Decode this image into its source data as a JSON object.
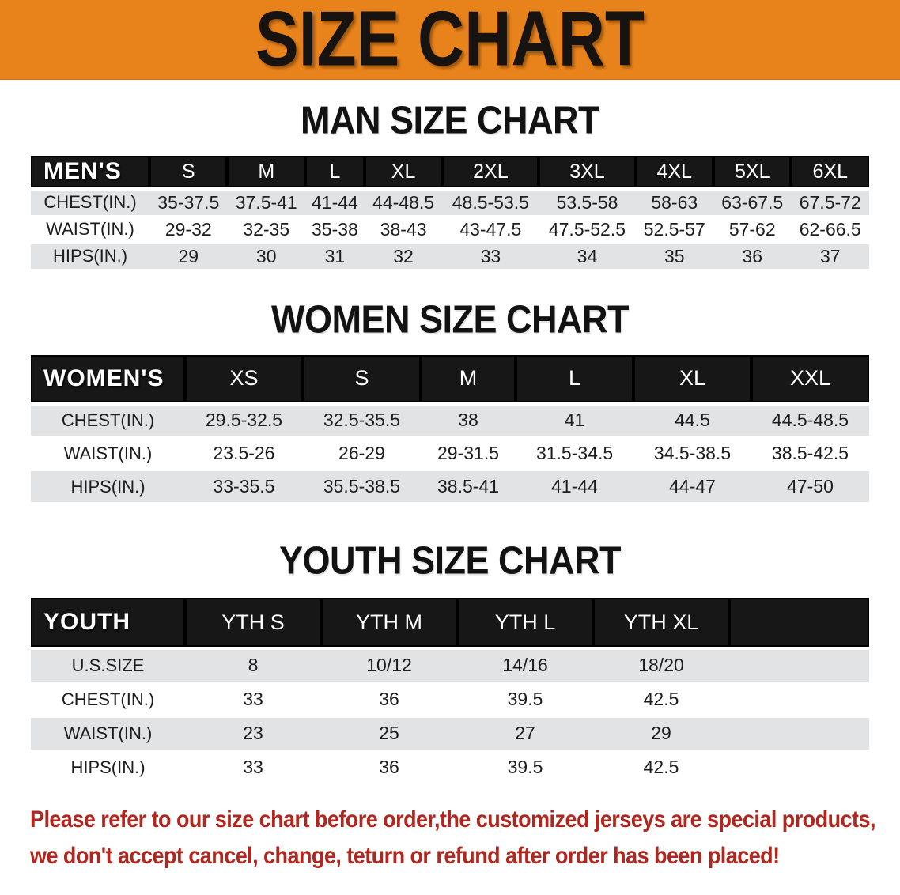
{
  "banner": {
    "title": "SIZE CHART",
    "bg_color": "#E8831C",
    "text_color": "#171310"
  },
  "colors": {
    "table_header_bg": "#171717",
    "table_header_text": "#ffffff",
    "row_stripe": "#E2E3E5",
    "disclaimer_text": "#B0271F"
  },
  "sections": [
    {
      "heading": "MAN SIZE CHART",
      "table": {
        "header_label": "MEN'S",
        "columns": [
          "S",
          "M",
          "L",
          "XL",
          "2XL",
          "3XL",
          "4XL",
          "5XL",
          "6XL"
        ],
        "rows": [
          {
            "label": "CHEST(IN.)",
            "shade": true,
            "values": [
              "35-37.5",
              "37.5-41",
              "41-44",
              "44-48.5",
              "48.5-53.5",
              "53.5-58",
              "58-63",
              "63-67.5",
              "67.5-72"
            ]
          },
          {
            "label": "WAIST(IN.)",
            "shade": false,
            "values": [
              "29-32",
              "32-35",
              "35-38",
              "38-43",
              "43-47.5",
              "47.5-52.5",
              "52.5-57",
              "57-62",
              "62-66.5"
            ]
          },
          {
            "label": "HIPS(IN.)",
            "shade": true,
            "values": [
              "29",
              "30",
              "31",
              "32",
              "33",
              "34",
              "35",
              "36",
              "37"
            ]
          }
        ]
      }
    },
    {
      "heading": "WOMEN SIZE CHART",
      "table": {
        "header_label": "WOMEN'S",
        "columns": [
          "XS",
          "S",
          "M",
          "L",
          "XL",
          "XXL"
        ],
        "rows": [
          {
            "label": "CHEST(IN.)",
            "shade": true,
            "values": [
              "29.5-32.5",
              "32.5-35.5",
              "38",
              "41",
              "44.5",
              "44.5-48.5"
            ]
          },
          {
            "label": "WAIST(IN.)",
            "shade": false,
            "values": [
              "23.5-26",
              "26-29",
              "29-31.5",
              "31.5-34.5",
              "34.5-38.5",
              "38.5-42.5"
            ]
          },
          {
            "label": "HIPS(IN.)",
            "shade": true,
            "values": [
              "33-35.5",
              "35.5-38.5",
              "38.5-41",
              "41-44",
              "44-47",
              "47-50"
            ]
          }
        ]
      }
    },
    {
      "heading": "YOUTH SIZE CHART",
      "table": {
        "header_label": "YOUTH",
        "columns": [
          "YTH S",
          "YTH M",
          "YTH L",
          "YTH XL"
        ],
        "rows": [
          {
            "label": "U.S.SIZE",
            "shade": true,
            "values": [
              "8",
              "10/12",
              "14/16",
              "18/20"
            ]
          },
          {
            "label": "CHEST(IN.)",
            "shade": false,
            "values": [
              "33",
              "36",
              "39.5",
              "42.5"
            ]
          },
          {
            "label": "WAIST(IN.)",
            "shade": true,
            "values": [
              "23",
              "25",
              "27",
              "29"
            ]
          },
          {
            "label": "HIPS(IN.)",
            "shade": false,
            "values": [
              "33",
              "36",
              "39.5",
              "42.5"
            ]
          }
        ]
      }
    }
  ],
  "disclaimer": {
    "lines": [
      "Please refer to our size chart before order,the customized jerseys are special products,",
      "we don't accept cancel, change, teturn or refund after order has been placed!"
    ]
  }
}
